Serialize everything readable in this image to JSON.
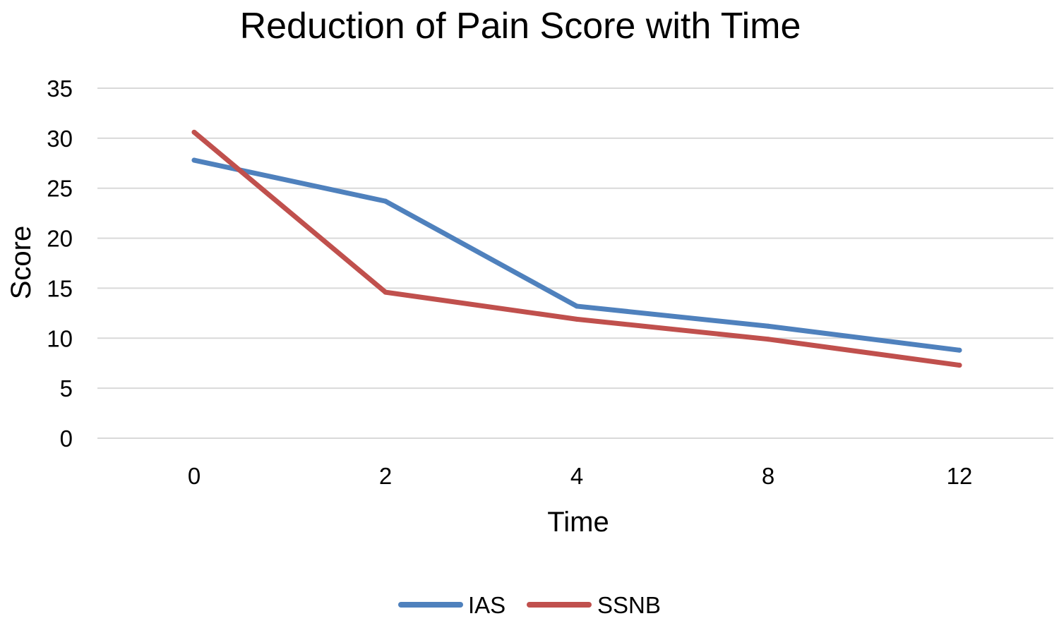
{
  "chart_data": {
    "type": "line",
    "title": "Reduction of Pain Score with Time",
    "xlabel": "Time",
    "ylabel": "Score",
    "categories": [
      "0",
      "2",
      "4",
      "8",
      "12"
    ],
    "ylim": [
      0,
      35
    ],
    "yticks": [
      0,
      5,
      10,
      15,
      20,
      25,
      30,
      35
    ],
    "grid": true,
    "legend": "bottom",
    "series": [
      {
        "name": "IAS",
        "color": "#4f81bd",
        "values": [
          27.8,
          23.7,
          13.2,
          11.2,
          8.8
        ]
      },
      {
        "name": "SSNB",
        "color": "#c0504d",
        "values": [
          30.6,
          14.6,
          11.9,
          9.9,
          7.3
        ]
      }
    ]
  }
}
